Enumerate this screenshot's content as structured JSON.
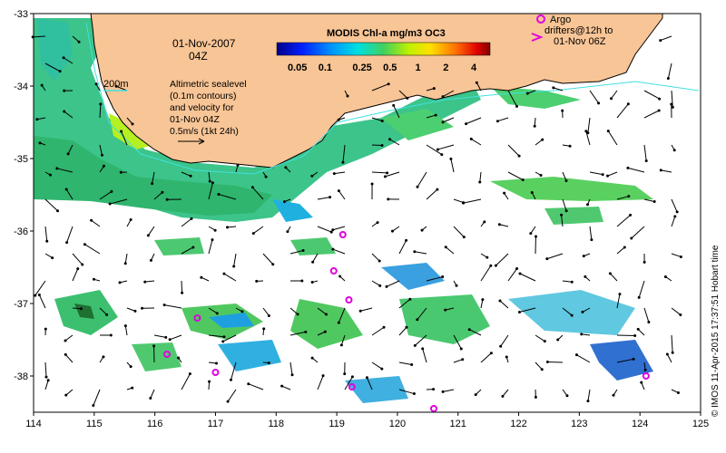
{
  "map": {
    "lon_range": [
      114,
      125
    ],
    "lat_range": [
      -38.5,
      -33
    ],
    "x_ticks": [
      "114",
      "115",
      "116",
      "117",
      "118",
      "119",
      "120",
      "121",
      "122",
      "123",
      "124",
      "125"
    ],
    "y_ticks": [
      "-33",
      "-34",
      "-35",
      "-36",
      "-37",
      "-38"
    ],
    "land_color": "#f8c596",
    "coast_color": "#000000"
  },
  "date_label": "01-Nov-2007",
  "time_label": "04Z",
  "depth_label": "200m",
  "altimetry_lines": [
    "Altimetric sealevel",
    "(0.1m contours)",
    "and velocity for",
    "01-Nov 04Z",
    "0.5m/s (1kt 24h)"
  ],
  "colorbar": {
    "title": "MODIS Chl-a mg/m3 OC3",
    "ticks": [
      "0.05",
      "0.1",
      "0.25",
      "0.5",
      "1",
      "2",
      "4"
    ],
    "colors": [
      "#00008b",
      "#0000ff",
      "#0080ff",
      "#00ffff",
      "#00c060",
      "#80ff00",
      "#ffff00",
      "#ff8000",
      "#ff0000",
      "#8b0000"
    ]
  },
  "legend": {
    "marker_label": "Argo",
    "drifter_lines": [
      "drifters@12h to",
      "01-Nov 06Z"
    ],
    "argo_color": "#e000e0"
  },
  "credit": "© IMOS 11-Apr-2015 17:37:51 Hobart time",
  "argo_floats": [
    {
      "lon": 119.1,
      "lat": -36.05
    },
    {
      "lon": 118.95,
      "lat": -36.55
    },
    {
      "lon": 119.2,
      "lat": -36.95
    },
    {
      "lon": 116.2,
      "lat": -37.7
    },
    {
      "lon": 117.0,
      "lat": -37.95
    },
    {
      "lon": 119.25,
      "lat": -38.15
    },
    {
      "lon": 120.6,
      "lat": -38.45
    },
    {
      "lon": 124.1,
      "lat": -38.0
    },
    {
      "lon": 116.7,
      "lat": -37.2
    }
  ]
}
